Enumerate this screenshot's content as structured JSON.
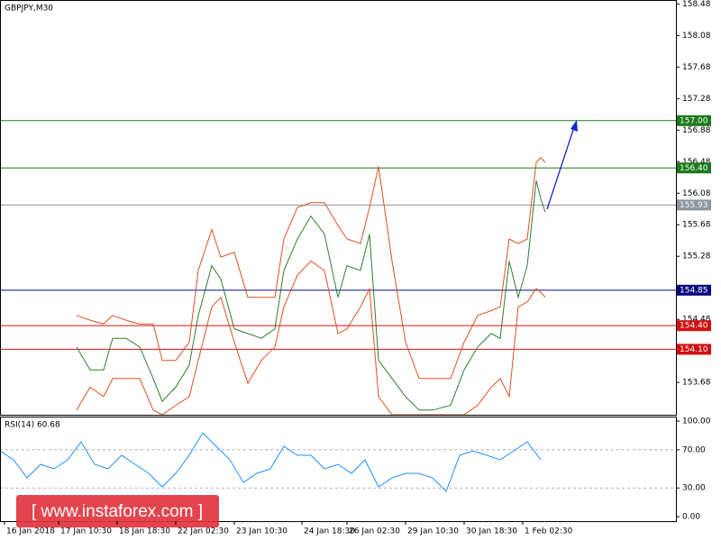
{
  "chart_data": [
    {
      "type": "line",
      "title": "GBPJPY,M30",
      "x": [
        17,
        20,
        23,
        25,
        28,
        31,
        34,
        36,
        39,
        42,
        44,
        47,
        49,
        52,
        55,
        58,
        61,
        63,
        66,
        69,
        72,
        75,
        77,
        80,
        82,
        84,
        87,
        90,
        93,
        96,
        100,
        103,
        106,
        109,
        111,
        113,
        115,
        117,
        119,
        120,
        121
      ],
      "series": [
        {
          "color": "#2e7d32",
          "values": [
            154.13,
            153.84,
            153.84,
            154.24,
            154.24,
            154.13,
            153.73,
            153.44,
            153.62,
            153.9,
            154.53,
            155.16,
            154.99,
            154.36,
            154.3,
            154.24,
            154.36,
            155.1,
            155.5,
            155.79,
            155.56,
            154.76,
            155.16,
            155.1,
            155.56,
            153.96,
            153.73,
            153.5,
            153.33,
            153.33,
            153.39,
            153.84,
            154.13,
            154.3,
            154.24,
            155.22,
            154.76,
            155.16,
            156.24,
            156.01,
            155.84
          ]
        },
        {
          "color": "#e0501e",
          "values": [
            154.53,
            154.47,
            154.42,
            154.53,
            154.47,
            154.42,
            154.42,
            153.96,
            153.96,
            154.19,
            155.1,
            155.62,
            155.27,
            155.33,
            154.76,
            154.76,
            154.76,
            155.5,
            155.9,
            155.96,
            155.96,
            155.67,
            155.5,
            155.44,
            155.9,
            156.42,
            155.22,
            154.19,
            153.73,
            153.73,
            153.73,
            154.19,
            154.53,
            154.59,
            154.64,
            155.5,
            155.44,
            155.5,
            156.47,
            156.53,
            156.47
          ]
        },
        {
          "color": "#e0501e",
          "values": [
            153.33,
            153.62,
            153.5,
            153.73,
            153.73,
            153.73,
            153.33,
            153.27,
            153.39,
            153.5,
            153.96,
            154.64,
            154.76,
            154.19,
            153.67,
            153.96,
            154.13,
            154.64,
            155.04,
            155.22,
            155.1,
            154.3,
            154.36,
            154.64,
            154.87,
            153.5,
            153.27,
            153.27,
            153.27,
            153.27,
            153.27,
            153.27,
            153.39,
            153.62,
            153.73,
            153.5,
            154.64,
            154.7,
            154.87,
            154.82,
            154.76
          ]
        }
      ],
      "xlim": [
        0,
        150
      ],
      "ylim": [
        153.27,
        158.53
      ],
      "yticks": [
        153.68,
        154.48,
        155.28,
        155.68,
        156.08,
        156.48,
        156.88,
        157.28,
        157.68,
        158.08,
        158.48
      ],
      "levels": [
        {
          "value": 157.0,
          "label": "157.00",
          "color": "#1a7a1a"
        },
        {
          "value": 156.4,
          "label": "156.40",
          "color": "#1a7a1a"
        },
        {
          "value": 155.93,
          "label": "155.93",
          "color": "#8c96a0"
        },
        {
          "value": 154.85,
          "label": "154.85",
          "color": "#0a0a80"
        },
        {
          "value": 154.4,
          "label": "154.40",
          "color": "#d01010"
        },
        {
          "value": 154.1,
          "label": "154.10",
          "color": "#d01010"
        }
      ]
    },
    {
      "type": "line",
      "title": "RSI(14) 60.68",
      "x": [
        0,
        3,
        6,
        9,
        12,
        15,
        18,
        21,
        24,
        27,
        30,
        33,
        36,
        39,
        42,
        45,
        48,
        51,
        54,
        57,
        60,
        63,
        66,
        69,
        72,
        75,
        78,
        81,
        84,
        87,
        90,
        93,
        96,
        99,
        102,
        105,
        108,
        111,
        114,
        117,
        120
      ],
      "series": [
        {
          "color": "#1e90ff",
          "values": [
            68.9,
            59.4,
            40.6,
            54.7,
            50.0,
            59.4,
            78.3,
            54.7,
            50.0,
            64.2,
            54.7,
            45.3,
            31.1,
            45.3,
            64.2,
            87.7,
            73.6,
            59.4,
            35.8,
            45.3,
            50.0,
            73.6,
            64.2,
            64.2,
            50.0,
            54.7,
            45.3,
            59.4,
            31.1,
            40.6,
            45.3,
            45.3,
            40.6,
            26.4,
            64.2,
            68.9,
            64.2,
            59.4,
            68.9,
            78.3,
            59.4
          ]
        }
      ],
      "xlim": [
        0,
        150
      ],
      "ylim": [
        -4.7,
        104.7
      ],
      "yticks": [
        {
          "value": 0,
          "label": "0.00"
        },
        {
          "value": 30,
          "label": "30.00"
        },
        {
          "value": 70,
          "label": "70.00"
        },
        {
          "value": 100,
          "label": "100.00"
        }
      ],
      "xticks": [
        {
          "value": 1,
          "label": "16 Jan 2018"
        },
        {
          "value": 13,
          "label": "17 Jan 10:30"
        },
        {
          "value": 26,
          "label": "18 Jan 18:30"
        },
        {
          "value": 39,
          "label": "22 Jan 02:30"
        },
        {
          "value": 52,
          "label": "23 Jan 10:30"
        },
        {
          "value": 67,
          "label": "24 Jan 18:30"
        },
        {
          "value": 77,
          "label": "26 Jan 02:30"
        },
        {
          "value": 90,
          "label": "29 Jan 10:30"
        },
        {
          "value": 103,
          "label": "30 Jan 18:30"
        },
        {
          "value": 116,
          "label": "1 Feb 02:30"
        }
      ]
    }
  ],
  "watermark": "[ www.instaforex.com ]"
}
